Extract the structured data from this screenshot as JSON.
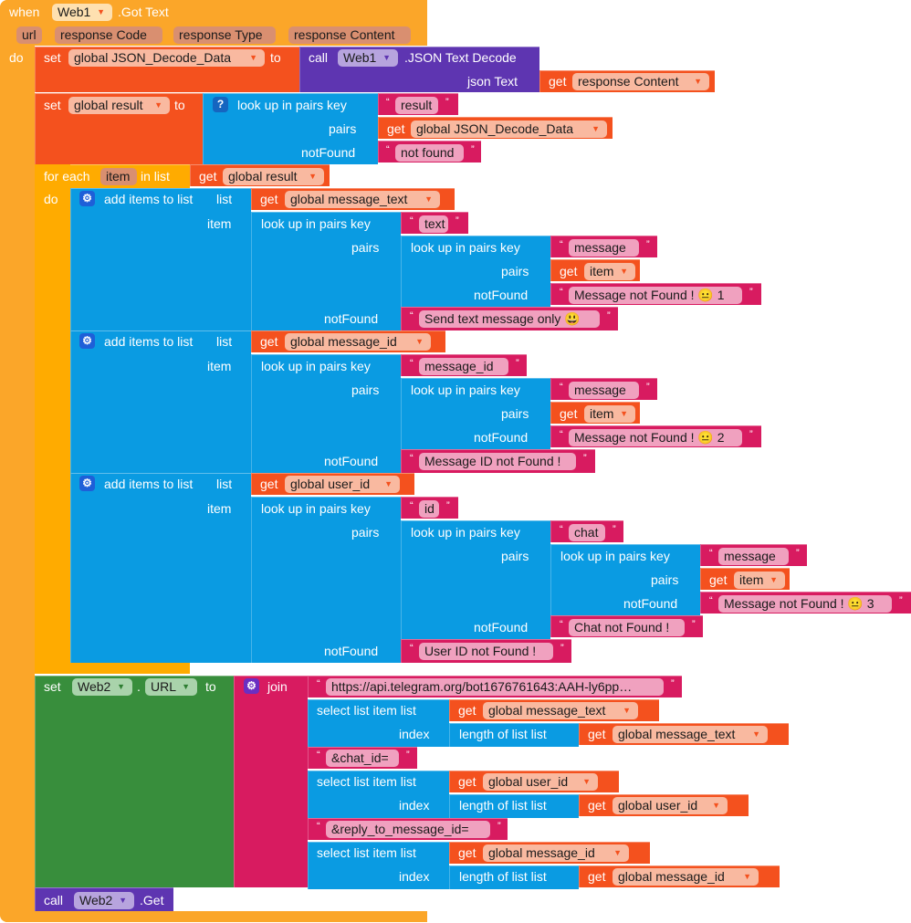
{
  "colors": {
    "event": "#fba629",
    "event_dd": "#fee0b0",
    "param": "#d98f70",
    "setter": "#f4511e",
    "getter_pill": "#f9b9a0",
    "component": "#5e35b1",
    "component_dd": "#b7a4de",
    "lists": "#0a9be2",
    "text": "#d81b60",
    "text_pill": "#f0a1bf",
    "control": "#ffab00",
    "property": "#388e3c",
    "property_dd": "#a9d3ab"
  },
  "event": {
    "when": "when",
    "component": "Web1",
    "name": ".Got Text",
    "params": [
      "url",
      "response Code",
      "response Type",
      "response Content"
    ],
    "do": "do"
  },
  "set_json": {
    "set": "set",
    "var": "global JSON_Decode_Data",
    "to": "to",
    "call": "call",
    "component": "Web1",
    "method": ".JSON Text Decode",
    "arg_label": "json Text",
    "get": "get",
    "arg_var": "response Content"
  },
  "set_result": {
    "set": "set",
    "var": "global result",
    "to": "to",
    "lookup": "look up in pairs  key",
    "pairs": "pairs",
    "notFound": "notFound",
    "key": "result",
    "get": "get",
    "pairs_var": "global JSON_Decode_Data",
    "nf": "not found"
  },
  "for_each": {
    "for_each": "for each",
    "var": "item",
    "in_list": "in list",
    "get": "get",
    "list_var": "global result",
    "do": "do"
  },
  "labels": {
    "add_items": "add items to list",
    "list": "list",
    "item": "item",
    "get": "get",
    "lookup": "look up in pairs  key",
    "pairs": "pairs",
    "notFound": "notFound",
    "select": "select list item  list",
    "index": "index",
    "length": "length of list   list",
    "join": "join",
    "dot": "."
  },
  "add1": {
    "list_var": "global message_text",
    "key": "text",
    "inner_key": "message",
    "inner_pairs": "item",
    "inner_nf": "Message not Found ! 😐 1",
    "nf": "Send text message only 😃"
  },
  "add2": {
    "list_var": "global message_id",
    "key": "message_id",
    "inner_key": "message",
    "inner_pairs": "item",
    "inner_nf": "Message not Found ! 😐 2",
    "nf": "Message ID not Found !"
  },
  "add3": {
    "list_var": "global user_id",
    "key": "id",
    "mid_key": "chat",
    "inner_key": "message",
    "inner_pairs": "item",
    "inner_nf": "Message not Found ! 😐 3",
    "mid_nf": "Chat not Found !",
    "nf": "User ID not Found !"
  },
  "set_url": {
    "set": "set",
    "component": "Web2",
    "property": "URL",
    "to": "to",
    "url": "https://api.telegram.org/bot1676761643:AAH-ly6pp…",
    "chat_param": "&chat_id=",
    "reply_param": "&reply_to_message_id=",
    "var_text": "global message_text",
    "var_user": "global user_id",
    "var_msg": "global message_id"
  },
  "call_get": {
    "call": "call",
    "component": "Web2",
    "method": ".Get"
  }
}
